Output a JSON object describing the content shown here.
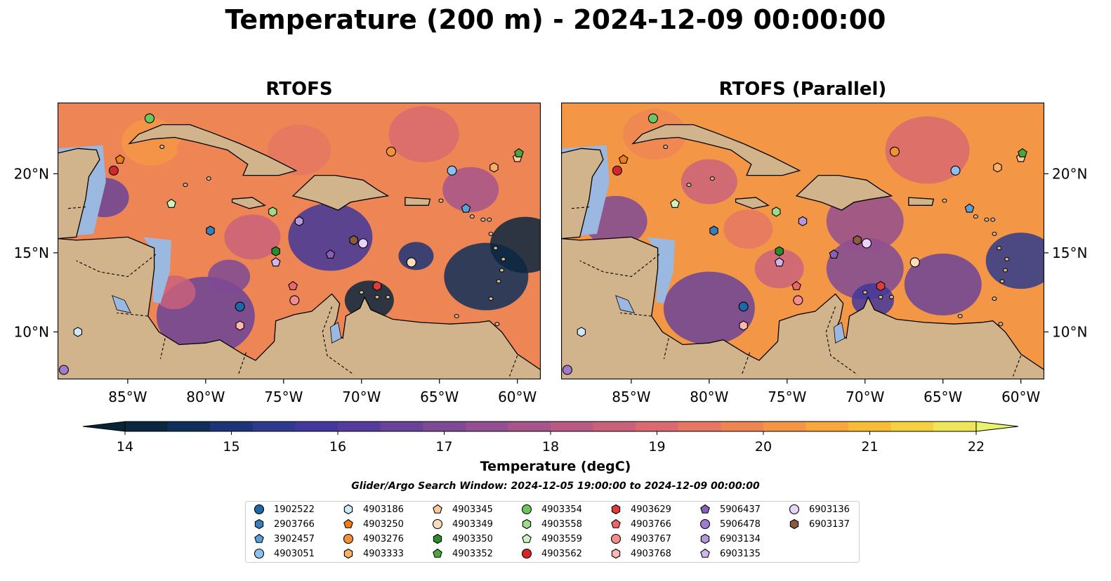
{
  "title": "Temperature (200 m) - 2024-12-09 00:00:00",
  "panels": [
    {
      "title": "RTOFS",
      "variant": "operational"
    },
    {
      "title": "RTOFS (Parallel)",
      "variant": "parallel"
    }
  ],
  "map": {
    "lon_range": [
      -89.5,
      -58.5
    ],
    "lat_range": [
      7.0,
      24.5
    ],
    "lon_ticks": [
      "85°W",
      "80°W",
      "75°W",
      "70°W",
      "65°W",
      "60°W"
    ],
    "lat_ticks": [
      "20°N",
      "15°N",
      "10°N"
    ]
  },
  "colorbar": {
    "label": "Temperature (degC)",
    "min": 14,
    "max": 22,
    "step": 0.5,
    "ticks": [
      "14",
      "15",
      "16",
      "17",
      "18",
      "19",
      "20",
      "21",
      "22"
    ],
    "colors": [
      "#0b2740",
      "#0f2f5a",
      "#1c3577",
      "#2e3a8c",
      "#42379a",
      "#553c9a",
      "#6a4398",
      "#7e4a95",
      "#934f91",
      "#a6558b",
      "#b85b84",
      "#c9617b",
      "#d86a70",
      "#e57764",
      "#ee8555",
      "#f39746",
      "#f6a83c",
      "#f8bb38",
      "#f5d142",
      "#eee55a"
    ],
    "extend_low_color": "#082236",
    "extend_high_color": "#e9f46a"
  },
  "search_window": "Glider/Argo Search Window: 2024-12-05 19:00:00 to 2024-12-09 00:00:00",
  "legend": [
    {
      "id": "1902522",
      "marker": "circle",
      "color": "#1f68a8"
    },
    {
      "id": "2903766",
      "marker": "hexagon",
      "color": "#3a7fbd"
    },
    {
      "id": "3902457",
      "marker": "pentagon",
      "color": "#5a9fd6"
    },
    {
      "id": "4903051",
      "marker": "circle",
      "color": "#8dc0ee"
    },
    {
      "id": "4903186",
      "marker": "hexagon",
      "color": "#cfe7f7"
    },
    {
      "id": "4903250",
      "marker": "pentagon",
      "color": "#f07d18"
    },
    {
      "id": "4903276",
      "marker": "circle",
      "color": "#f49135"
    },
    {
      "id": "4903333",
      "marker": "hexagon",
      "color": "#fbb068"
    },
    {
      "id": "4903345",
      "marker": "pentagon",
      "color": "#fcc99a"
    },
    {
      "id": "4903349",
      "marker": "circle",
      "color": "#fddcbd"
    },
    {
      "id": "4903350",
      "marker": "hexagon",
      "color": "#2a8c2a"
    },
    {
      "id": "4903352",
      "marker": "pentagon",
      "color": "#49a83d"
    },
    {
      "id": "4903354",
      "marker": "circle",
      "color": "#6cc65c"
    },
    {
      "id": "4903558",
      "marker": "hexagon",
      "color": "#9ddd8a"
    },
    {
      "id": "4903559",
      "marker": "pentagon",
      "color": "#cdf2bd"
    },
    {
      "id": "4903562",
      "marker": "circle",
      "color": "#d62728"
    },
    {
      "id": "4903629",
      "marker": "hexagon",
      "color": "#e03b3b"
    },
    {
      "id": "4903766",
      "marker": "pentagon",
      "color": "#ee6565"
    },
    {
      "id": "4903767",
      "marker": "circle",
      "color": "#f28d8d"
    },
    {
      "id": "4903768",
      "marker": "hexagon",
      "color": "#fbb8b0"
    },
    {
      "id": "5906437",
      "marker": "pentagon",
      "color": "#8a5fb8"
    },
    {
      "id": "5906478",
      "marker": "circle",
      "color": "#a07acb"
    },
    {
      "id": "6903134",
      "marker": "hexagon",
      "color": "#b699dc"
    },
    {
      "id": "6903135",
      "marker": "pentagon",
      "color": "#d1b6ee"
    },
    {
      "id": "6903136",
      "marker": "circle",
      "color": "#e7d4f8"
    },
    {
      "id": "6903137",
      "marker": "hexagon",
      "color": "#8c5a3c"
    }
  ],
  "floats": [
    {
      "id": "4903354",
      "lon": -83.6,
      "lat": 23.5
    },
    {
      "id": "4903250",
      "lon": -85.5,
      "lat": 20.9
    },
    {
      "id": "4903562",
      "lon": -85.9,
      "lat": 20.2
    },
    {
      "id": "4903559",
      "lon": -82.2,
      "lat": 18.1
    },
    {
      "id": "2903766",
      "lon": -79.7,
      "lat": 16.4
    },
    {
      "id": "1902522",
      "lon": -77.8,
      "lat": 11.6
    },
    {
      "id": "4903768",
      "lon": -77.8,
      "lat": 10.4
    },
    {
      "id": "4903186",
      "lon": -88.2,
      "lat": 10.0
    },
    {
      "id": "5906478",
      "lon": -89.1,
      "lat": 7.6
    },
    {
      "id": "4903558",
      "lon": -75.7,
      "lat": 17.6
    },
    {
      "id": "4903350",
      "lon": -75.5,
      "lat": 15.1
    },
    {
      "id": "6903135",
      "lon": -75.5,
      "lat": 14.4
    },
    {
      "id": "4903766",
      "lon": -74.4,
      "lat": 12.9
    },
    {
      "id": "4903767",
      "lon": -74.3,
      "lat": 12.0
    },
    {
      "id": "6903134",
      "lon": -74.0,
      "lat": 17.0
    },
    {
      "id": "5906437",
      "lon": -72.0,
      "lat": 14.9
    },
    {
      "id": "6903137",
      "lon": -70.5,
      "lat": 15.8
    },
    {
      "id": "6903136",
      "lon": -69.9,
      "lat": 15.6
    },
    {
      "id": "4903629",
      "lon": -69.0,
      "lat": 12.9
    },
    {
      "id": "4903276",
      "lon": -68.1,
      "lat": 21.4
    },
    {
      "id": "4903349",
      "lon": -66.8,
      "lat": 14.4
    },
    {
      "id": "4903051",
      "lon": -64.2,
      "lat": 20.2
    },
    {
      "id": "3902457",
      "lon": -63.3,
      "lat": 17.8
    },
    {
      "id": "4903333",
      "lon": -61.5,
      "lat": 20.4
    },
    {
      "id": "4903345",
      "lon": -60.0,
      "lat": 21.0
    },
    {
      "id": "4903352",
      "lon": -59.9,
      "lat": 21.3
    }
  ]
}
